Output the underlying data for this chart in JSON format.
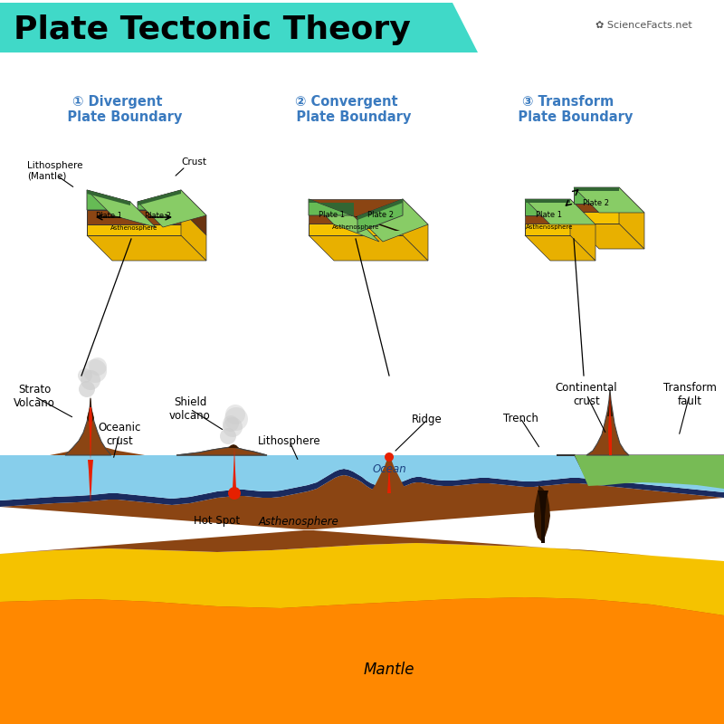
{
  "title": "Plate Tectonic Theory",
  "title_bg_color": "#40d9c8",
  "title_font_size": 26,
  "bg_color": "#ffffff",
  "boundary_titles": [
    "① Divergent\n   Plate Boundary",
    "② Convergent\n   Plate Boundary",
    "③ Transform\n   Plate Boundary"
  ],
  "boundary_title_color": "#3a7abf",
  "colors": {
    "green_plate": "#66bb55",
    "dark_green": "#336633",
    "green_top": "#88cc66",
    "yellow_astheno": "#f5c200",
    "yellow_side": "#e8b000",
    "brown_litho": "#8B4513",
    "brown_side": "#6B3410",
    "dark_brown": "#3a1a00",
    "ocean_blue": "#87ceeb",
    "dark_navy": "#1a2a5e",
    "red_magma": "#e62000",
    "orange_mantle": "#ff8800",
    "deep_red": "#cc2000",
    "white": "#ffffff",
    "gray_smoke": "#bbbbbb",
    "tan_crust": "#c8a060",
    "green_land": "#559944",
    "green_land_top": "#77bb55"
  }
}
